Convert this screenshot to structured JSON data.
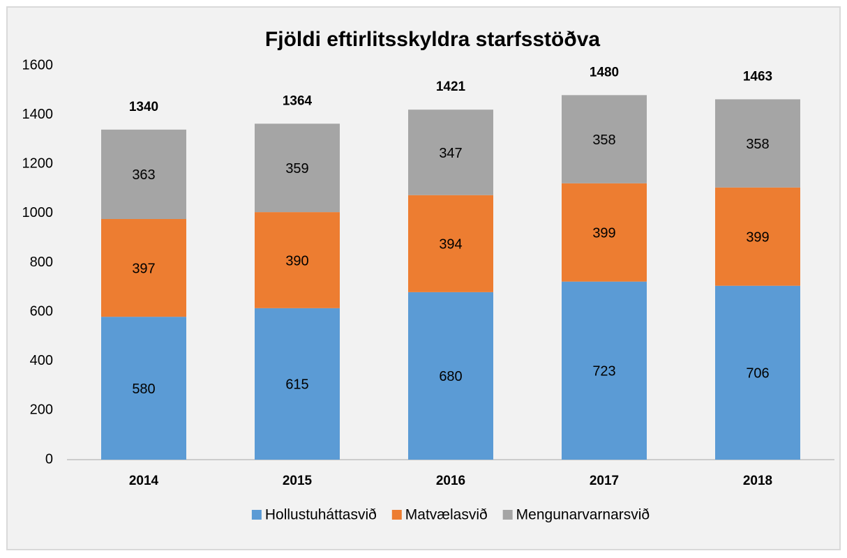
{
  "chart_data": {
    "type": "stacked_bar",
    "title": "Fjöldi eftirlitsskyldra starfsstöðva",
    "categories": [
      "2014",
      "2015",
      "2016",
      "2017",
      "2018"
    ],
    "series": [
      {
        "name": "Hollustuháttasvið",
        "color": "#5b9bd5",
        "values": [
          580,
          615,
          680,
          723,
          706
        ]
      },
      {
        "name": "Matvælasvið",
        "color": "#ed7d31",
        "values": [
          397,
          390,
          394,
          399,
          399
        ]
      },
      {
        "name": "Mengunarvarnarsvið",
        "color": "#a5a5a5",
        "values": [
          363,
          359,
          347,
          358,
          358
        ]
      }
    ],
    "totals": [
      1340,
      1364,
      1421,
      1480,
      1463
    ],
    "ylim": [
      0,
      1600
    ],
    "yticks": [
      0,
      200,
      400,
      600,
      800,
      1000,
      1200,
      1400,
      1600
    ],
    "grid": false,
    "legend": "bottom"
  }
}
